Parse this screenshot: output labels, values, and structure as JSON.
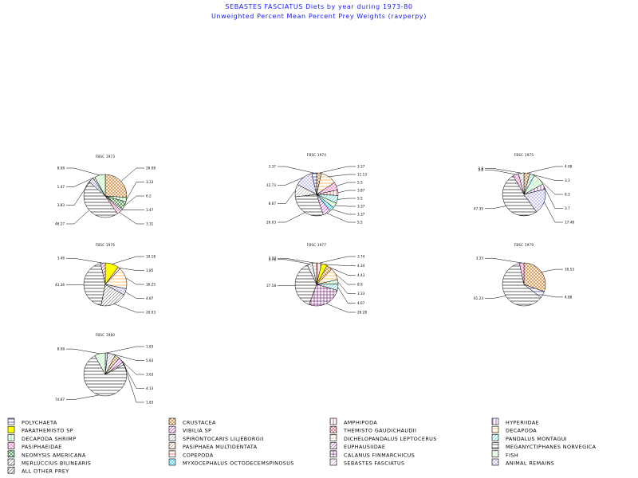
{
  "header": {
    "title": "SEBASTES FASCIATUS Diets by year during 1973-80",
    "subtitle": "Unweighted Percent Mean Percent Prey  Weights (ravperpy)"
  },
  "categories": [
    {
      "name": "POLYCHAETA",
      "color": "#000099",
      "hatch": "hlines"
    },
    {
      "name": "CRUSTACEA",
      "color": "#cc6600",
      "hatch": "cross"
    },
    {
      "name": "AMPHIPODA",
      "color": "#cc0000",
      "hatch": "vlines"
    },
    {
      "name": "HYPERIIDAE",
      "color": "#660099",
      "hatch": "vlines"
    },
    {
      "name": "PARATHEMISTO SP",
      "color": "#ffff00",
      "hatch": "solid"
    },
    {
      "name": "VIBILIA SP",
      "color": "#cc00cc",
      "hatch": "diag"
    },
    {
      "name": "THEMISTO GAUDICHAUDII",
      "color": "#cc3333",
      "hatch": "cross"
    },
    {
      "name": "DECAPODA",
      "color": "#ff9900",
      "hatch": "hlines"
    },
    {
      "name": "DECAPODA SHRIMP",
      "color": "#00cc00",
      "hatch": "vlines"
    },
    {
      "name": "SPIRONTOCARIS LILJEBORGII",
      "color": "#999999",
      "hatch": "diag"
    },
    {
      "name": "DICHELOPANDALUS LEPTOCERUS",
      "color": "#cc9966",
      "hatch": "hlines"
    },
    {
      "name": "PANDALUS MONTAGUI",
      "color": "#00cccc",
      "hatch": "diag"
    },
    {
      "name": "PASIPHAEIDAE",
      "color": "#ff66cc",
      "hatch": "cross"
    },
    {
      "name": "PASIPHAEA MULTIDENTATA",
      "color": "#996633",
      "hatch": "diag"
    },
    {
      "name": "EUPHAUSIIDAE",
      "color": "#993399",
      "hatch": "diag"
    },
    {
      "name": "MEGANYCTIPHANES NORVEGICA",
      "color": "#000000",
      "hatch": "hlines"
    },
    {
      "name": "NEOMYSIS AMERICANA",
      "color": "#006600",
      "hatch": "cross"
    },
    {
      "name": "COPEPODA",
      "color": "#ff0000",
      "hatch": "hlines"
    },
    {
      "name": "CALANUS FINMARCHICUS",
      "color": "#660066",
      "hatch": "grid"
    },
    {
      "name": "FISH",
      "color": "#66ff66",
      "hatch": "diag"
    },
    {
      "name": "MERLUCCIUS BILINEARIS",
      "color": "#666666",
      "hatch": "diag"
    },
    {
      "name": "MYXOCEPHALUS OCTODECEMSPINOSUS",
      "color": "#00ccff",
      "hatch": "cross"
    },
    {
      "name": "SEBASTES FASCIATUS",
      "color": "#cc99cc",
      "hatch": "diag"
    },
    {
      "name": "ANIMAL REMAINS",
      "color": "#aaaaee",
      "hatch": "cross"
    },
    {
      "name": "ALL OTHER PREY",
      "color": "#333333",
      "hatch": "diag"
    }
  ],
  "chart_data": {
    "type": "pie",
    "title": "SEBASTES FASCIATUS Diets by year during 1973-80",
    "subtitle": "Unweighted Percent Mean Percent Prey  Weights (ravperpy)",
    "pies": [
      {
        "title": "FBSC 1973",
        "slices": [
          {
            "category": "CRUSTACEA",
            "value": 26.08,
            "label": "26.08"
          },
          {
            "category": "DECAPODA SHRIMP",
            "value": 3.33,
            "label": "3.33"
          },
          {
            "category": "NEOMYSIS AMERICANA",
            "value": 6.2,
            "label": "6.2"
          },
          {
            "category": "SPIRONTOCARIS LILJEBORGII",
            "value": 1.47,
            "label": "1.47"
          },
          {
            "category": "PASIPHAEIDAE",
            "value": 3.31,
            "label": "3.31"
          },
          {
            "category": "MEGANYCTIPHANES NORVEGICA",
            "value": 46.27,
            "label": "46.27"
          },
          {
            "category": "ANIMAL REMAINS",
            "value": 3.83,
            "label": "3.83"
          },
          {
            "category": "MERLUCCIUS BILINEARIS",
            "value": 1.47,
            "label": "1.47"
          },
          {
            "category": "FISH",
            "value": 8.08,
            "label": "8.08"
          }
        ]
      },
      {
        "title": "FBSC 1974",
        "slices": [
          {
            "category": "CRUSTACEA",
            "value": 3.37,
            "label": "3.37"
          },
          {
            "category": "DECAPODA",
            "value": 11.13,
            "label": "11.13"
          },
          {
            "category": "PASIPHAEIDAE",
            "value": 5.5,
            "label": "5.5"
          },
          {
            "category": "AMPHIPODA",
            "value": 3.87,
            "label": "3.87"
          },
          {
            "category": "PANDALUS MONTAGUI",
            "value": 5.5,
            "label": "5.5"
          },
          {
            "category": "FISH",
            "value": 3.37,
            "label": "3.37"
          },
          {
            "category": "MYXOCEPHALUS OCTODECEMSPINOSUS",
            "value": 3.37,
            "label": "3.37"
          },
          {
            "category": "VIBILIA SP",
            "value": 5.5,
            "label": "5.5"
          },
          {
            "category": "MEGANYCTIPHANES NORVEGICA",
            "value": 26.03,
            "label": "26.03"
          },
          {
            "category": "SPIRONTOCARIS LILJEBORGII",
            "value": 8.67,
            "label": "8.67"
          },
          {
            "category": "ANIMAL REMAINS",
            "value": 12.73,
            "label": "12.73"
          },
          {
            "category": "POLYCHAETA",
            "value": 3.37,
            "label": "3.37"
          }
        ]
      },
      {
        "title": "FBSC 1975",
        "slices": [
          {
            "category": "CRUSTACEA",
            "value": 4.08,
            "label": "4.08"
          },
          {
            "category": "PANDALUS MONTAGUI",
            "value": 3.3,
            "label": "3.3"
          },
          {
            "category": "FISH",
            "value": 8.3,
            "label": "8.3"
          },
          {
            "category": "HYPERIIDAE",
            "value": 3.7,
            "label": "3.7"
          },
          {
            "category": "ANIMAL REMAINS",
            "value": 17.48,
            "label": "17.48"
          },
          {
            "category": "MEGANYCTIPHANES NORVEGICA",
            "value": 47.35,
            "label": "47.35"
          },
          {
            "category": "PASIPHAEIDAE",
            "value": 3.8,
            "label": "3.8"
          },
          {
            "category": "SPIRONTOCARIS LILJEBORGII",
            "value": 3.8,
            "label": "3.8"
          }
        ]
      },
      {
        "title": "FBSC 1976",
        "slices": [
          {
            "category": "PARATHEMISTO SP",
            "value": 10.18,
            "label": "10.18"
          },
          {
            "category": "PASIPHAEIDAE",
            "value": 1.85,
            "label": "1.85"
          },
          {
            "category": "DECAPODA",
            "value": 16.25,
            "label": "16.25"
          },
          {
            "category": "ANIMAL REMAINS",
            "value": 4.87,
            "label": "4.87"
          },
          {
            "category": "MERLUCCIUS BILINEARIS",
            "value": 20.03,
            "label": "20.03"
          },
          {
            "category": "MEGANYCTIPHANES NORVEGICA",
            "value": 43.36,
            "label": "43.36"
          },
          {
            "category": "VIBILIA SP",
            "value": 3.46,
            "label": "3.46"
          }
        ]
      },
      {
        "title": "FBSC 1977",
        "slices": [
          {
            "category": "AMPHIPODA",
            "value": 3.74,
            "label": "3.74"
          },
          {
            "category": "PARATHEMISTO SP",
            "value": 4.34,
            "label": "4.34"
          },
          {
            "category": "CRUSTACEA",
            "value": 4.43,
            "label": "4.43"
          },
          {
            "category": "DECAPODA",
            "value": 8.9,
            "label": "8.9"
          },
          {
            "category": "FISH",
            "value": 3.33,
            "label": "3.33"
          },
          {
            "category": "PANDALUS MONTAGUI",
            "value": 4.67,
            "label": "4.67"
          },
          {
            "category": "CALANUS FINMARCHICUS",
            "value": 26.28,
            "label": "26.28"
          },
          {
            "category": "MEGANYCTIPHANES NORVEGICA",
            "value": 37.18,
            "label": "37.18"
          },
          {
            "category": "SPIRONTOCARIS LILJEBORGII",
            "value": 3.78,
            "label": "3.78"
          },
          {
            "category": "DICHELOPANDALUS LEPTOCERUS",
            "value": 3.33,
            "label": "3.33"
          }
        ]
      },
      {
        "title": "FBSC 1979",
        "slices": [
          {
            "category": "CRUSTACEA",
            "value": 30.53,
            "label": "30.53"
          },
          {
            "category": "POLYCHAETA",
            "value": 4.88,
            "label": "4.88"
          },
          {
            "category": "MEGANYCTIPHANES NORVEGICA",
            "value": 61.23,
            "label": "61.23"
          },
          {
            "category": "PASIPHAEIDAE",
            "value": 3.33,
            "label": "3.33"
          }
        ]
      },
      {
        "title": "FBSC 1980",
        "slices": [
          {
            "category": "ANIMAL REMAINS",
            "value": 1.83,
            "label": "1.83"
          },
          {
            "category": "SPIRONTOCARIS LILJEBORGII",
            "value": 5.83,
            "label": "5.83"
          },
          {
            "category": "CRUSTACEA",
            "value": 3.63,
            "label": "3.63"
          },
          {
            "category": "VIBILIA SP",
            "value": 4.13,
            "label": "4.13"
          },
          {
            "category": "MERLUCCIUS BILINEARIS",
            "value": 1.83,
            "label": "1.83"
          },
          {
            "category": "MEGANYCTIPHANES NORVEGICA",
            "value": 74.67,
            "label": "74.67"
          },
          {
            "category": "FISH",
            "value": 8.08,
            "label": "8.08"
          }
        ]
      }
    ]
  }
}
